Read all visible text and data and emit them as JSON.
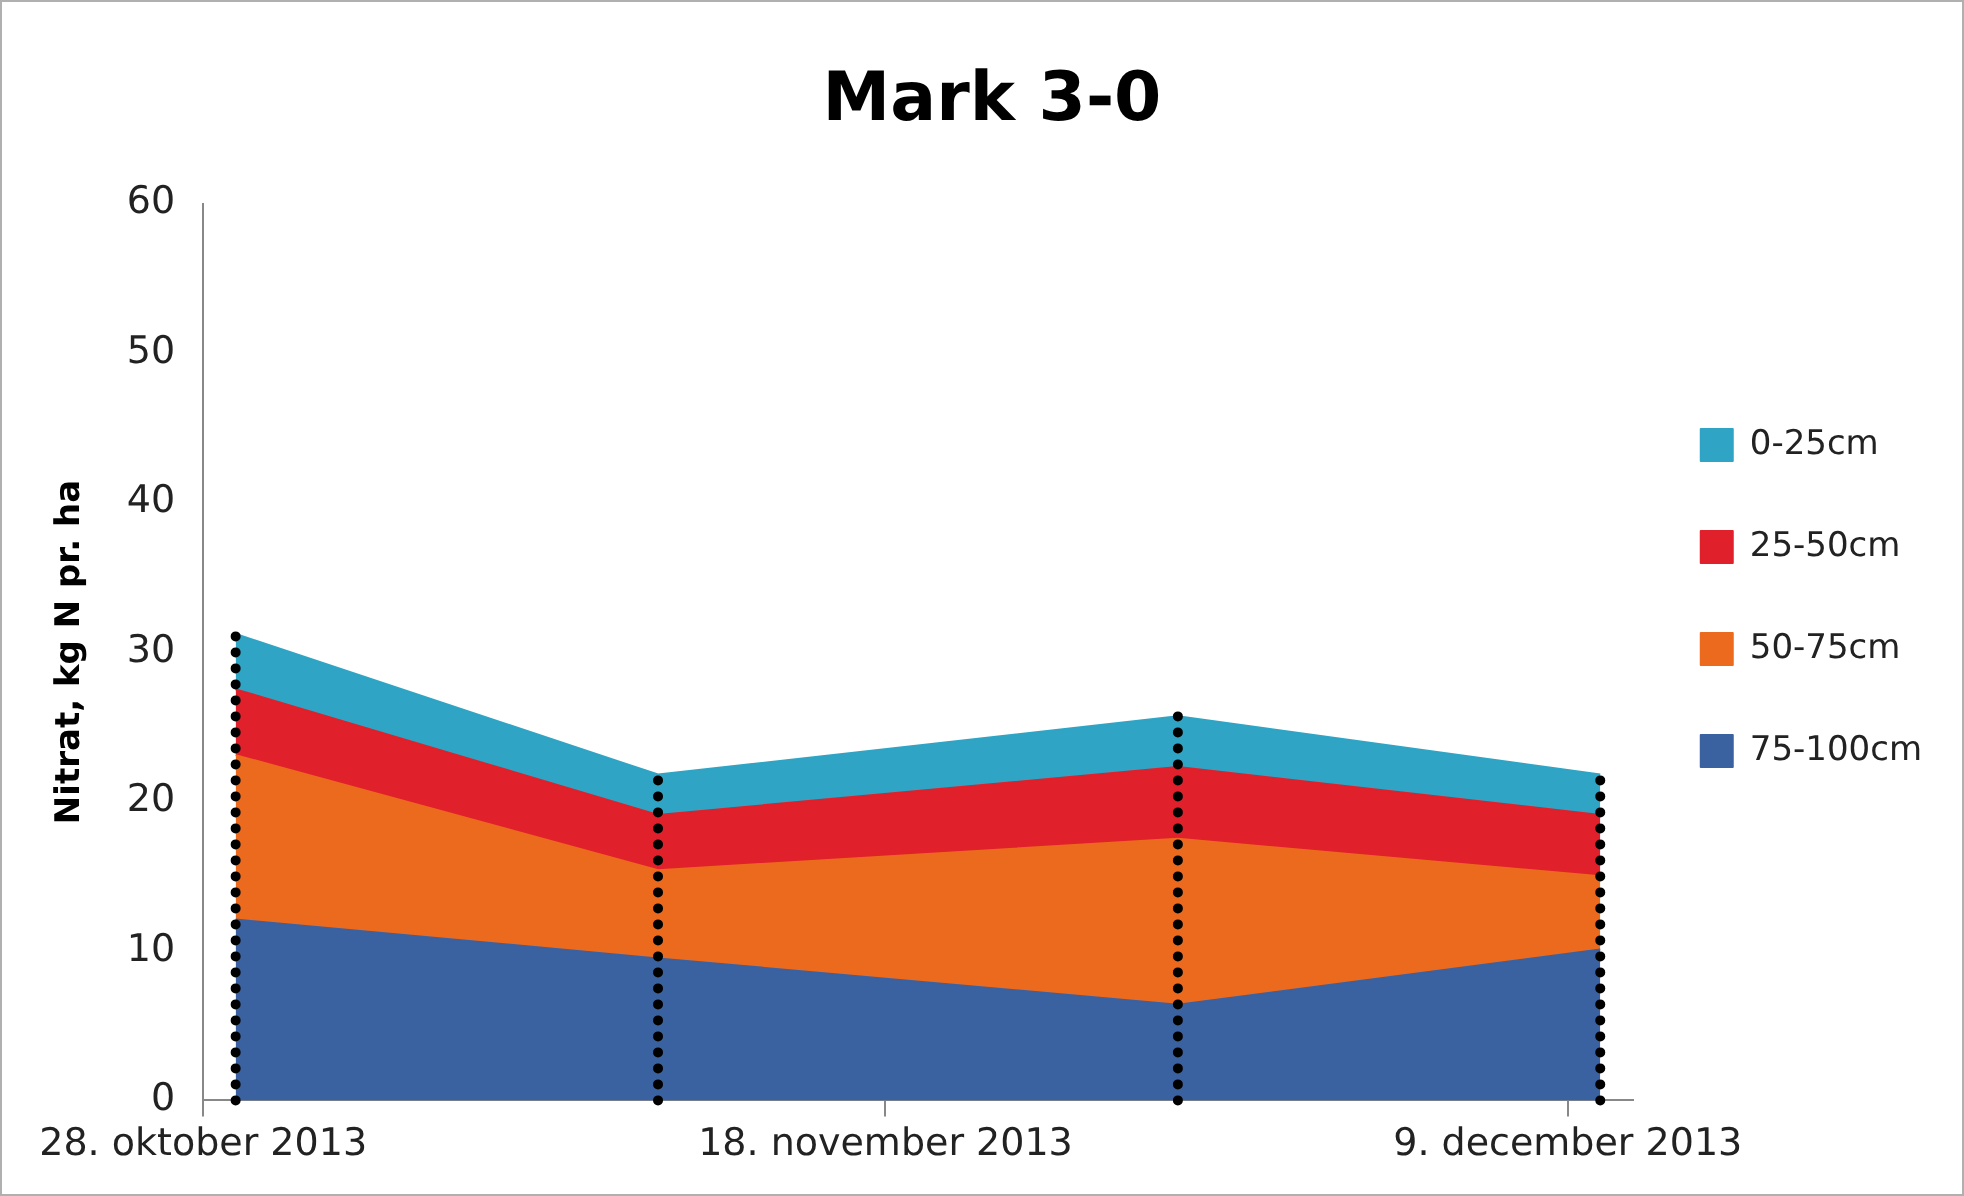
{
  "chart_data": {
    "type": "area",
    "title": "Mark 3-0",
    "ylabel": "Nitrat, kg N pr. ha",
    "x": [
      "2013-10-29",
      "2013-11-11",
      "2013-11-27",
      "2013-12-10"
    ],
    "series": [
      {
        "name": "75-100cm",
        "color": "#3a61a0",
        "values": [
          12.1,
          9.5,
          6.4,
          10.1
        ]
      },
      {
        "name": "50-75cm",
        "color": "#ec6a1e",
        "values": [
          11.0,
          5.9,
          11.1,
          4.9
        ]
      },
      {
        "name": "25-50cm",
        "color": "#e0202a",
        "values": [
          4.4,
          3.7,
          4.8,
          4.1
        ]
      },
      {
        "name": "0-25cm",
        "color": "#2fa4c4",
        "values": [
          3.7,
          2.7,
          3.4,
          2.7
        ]
      }
    ],
    "stacked": true,
    "xlim": [
      "2013-10-28",
      "2013-12-11"
    ],
    "xticks": [
      {
        "value": "2013-10-28",
        "label": "28. oktober 2013"
      },
      {
        "value": "2013-11-18",
        "label": "18. november 2013"
      },
      {
        "value": "2013-12-09",
        "label": "9. december 2013"
      }
    ],
    "ylim": [
      0,
      60
    ],
    "yticks": [
      0,
      10,
      20,
      30,
      40,
      50,
      60
    ],
    "ref_lines": [
      {
        "axis": "x",
        "value": "2013-10-29",
        "color": "#000000",
        "line_style": "dotted"
      },
      {
        "axis": "x",
        "value": "2013-11-11",
        "color": "#000000",
        "line_style": "dotted"
      },
      {
        "axis": "x",
        "value": "2013-11-27",
        "color": "#000000",
        "line_style": "dotted"
      },
      {
        "axis": "x",
        "value": "2013-12-10",
        "color": "#000000",
        "line_style": "dotted"
      }
    ],
    "grid": false,
    "legend": "right"
  }
}
